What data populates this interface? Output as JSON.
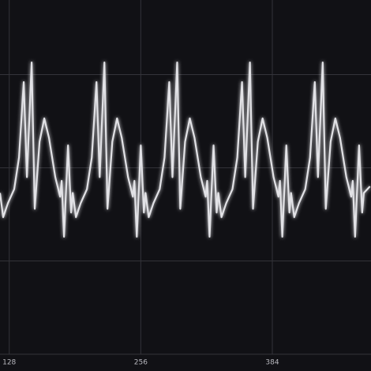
{
  "chart_data": {
    "type": "line",
    "x": [
      119,
      122.1,
      126.7,
      132.8,
      137.5,
      142.1,
      145.2,
      149.8,
      152.8,
      157.5,
      162.1,
      166.7,
      172.8,
      177.5,
      179,
      181.3,
      185.2,
      188.2,
      189.8,
      192.9,
      197.5,
      203.6,
      208.3,
      212.9,
      216,
      220.6,
      223.6,
      228.3,
      232.9,
      237.5,
      243.6,
      248.3,
      249.8,
      252.1,
      256,
      259,
      260.6,
      263.7,
      268.3,
      274.4,
      279.1,
      283.7,
      286.8,
      291.4,
      294.4,
      299.1,
      303.7,
      308.3,
      314.4,
      319.1,
      320.6,
      322.9,
      326.8,
      329.8,
      331.4,
      334.5,
      339.1,
      345.2,
      349.9,
      354.5,
      357.6,
      362.2,
      365.2,
      369.9,
      374.5,
      379.1,
      385.2,
      389.9,
      391.4,
      393.7,
      397.6,
      400.6,
      402.2,
      405.3,
      409.9,
      416,
      420.7,
      425.3,
      428.4,
      433,
      436,
      440.7,
      445.3,
      449.9,
      456,
      460.7,
      462.2,
      464.5,
      468.4,
      471.4,
      473,
      479
    ],
    "series": [
      {
        "color": "#e2e2e6",
        "values": [
          -0.27,
          -0.53,
          -0.38,
          -0.23,
          0.11,
          0.92,
          -0.1,
          1.13,
          -0.44,
          0.28,
          0.53,
          0.32,
          -0.1,
          -0.31,
          -0.14,
          -0.74,
          0.24,
          -0.48,
          -0.27,
          -0.53,
          -0.38,
          -0.23,
          0.11,
          0.92,
          -0.1,
          1.13,
          -0.44,
          0.28,
          0.53,
          0.32,
          -0.1,
          -0.31,
          -0.14,
          -0.74,
          0.24,
          -0.48,
          -0.27,
          -0.53,
          -0.38,
          -0.23,
          0.11,
          0.92,
          -0.1,
          1.13,
          -0.44,
          0.28,
          0.53,
          0.32,
          -0.1,
          -0.31,
          -0.14,
          -0.74,
          0.24,
          -0.48,
          -0.27,
          -0.53,
          -0.38,
          -0.23,
          0.11,
          0.92,
          -0.1,
          1.13,
          -0.44,
          0.28,
          0.53,
          0.32,
          -0.1,
          -0.31,
          -0.14,
          -0.74,
          0.24,
          -0.48,
          -0.27,
          -0.53,
          -0.38,
          -0.23,
          0.11,
          0.92,
          -0.1,
          1.13,
          -0.44,
          0.28,
          0.53,
          0.32,
          -0.1,
          -0.31,
          -0.14,
          -0.74,
          0.24,
          -0.48,
          -0.27,
          -0.2
        ]
      }
    ],
    "xlim": [
      119,
      480
    ],
    "xticks": [
      128,
      256,
      384
    ],
    "ylim": [
      -2.18,
      1.8
    ],
    "yticks": [
      -2,
      -1,
      0,
      1
    ],
    "grid": true
  }
}
